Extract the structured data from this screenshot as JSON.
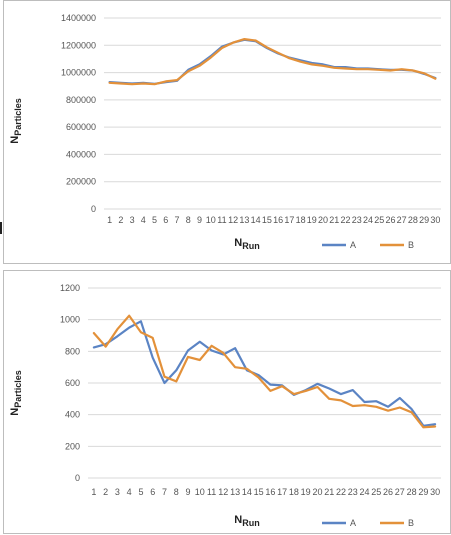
{
  "colors": {
    "series_a": "#5b84c4",
    "series_b": "#e3913a"
  },
  "chart_data": [
    {
      "type": "line",
      "title": "",
      "ylabel_main": "N",
      "ylabel_sub": "Particles",
      "xlabel_main": "N",
      "xlabel_sub": "Run",
      "ylim": [
        0,
        1400000
      ],
      "yticks": [
        "0",
        "200000",
        "400000",
        "600000",
        "800000",
        "1000000",
        "1200000",
        "1400000"
      ],
      "x": [
        "1",
        "2",
        "3",
        "4",
        "5",
        "6",
        "7",
        "8",
        "9",
        "10",
        "11",
        "12",
        "13",
        "14",
        "15",
        "16",
        "17",
        "18",
        "19",
        "20",
        "21",
        "22",
        "23",
        "24",
        "25",
        "26",
        "27",
        "28",
        "29",
        "30"
      ],
      "grid": true,
      "legend": "bottom-right",
      "series": [
        {
          "name": "A",
          "values": [
            930000,
            925000,
            920000,
            925000,
            918000,
            930000,
            940000,
            1020000,
            1060000,
            1120000,
            1190000,
            1220000,
            1240000,
            1230000,
            1180000,
            1140000,
            1110000,
            1090000,
            1070000,
            1060000,
            1040000,
            1040000,
            1030000,
            1030000,
            1025000,
            1020000,
            1020000,
            1015000,
            990000,
            960000
          ]
        },
        {
          "name": "B",
          "values": [
            925000,
            920000,
            915000,
            920000,
            915000,
            935000,
            945000,
            1010000,
            1050000,
            1110000,
            1180000,
            1220000,
            1245000,
            1235000,
            1185000,
            1145000,
            1105000,
            1080000,
            1060000,
            1050000,
            1035000,
            1030000,
            1025000,
            1025000,
            1020000,
            1015000,
            1025000,
            1015000,
            995000,
            955000
          ]
        }
      ]
    },
    {
      "type": "line",
      "title": "",
      "ylabel_main": "N",
      "ylabel_sub": "Particles",
      "xlabel_main": "N",
      "xlabel_sub": "Run",
      "ylim": [
        0,
        1200
      ],
      "yticks": [
        "0",
        "200",
        "400",
        "600",
        "800",
        "1000",
        "1200"
      ],
      "x": [
        "1",
        "2",
        "3",
        "4",
        "5",
        "6",
        "7",
        "8",
        "9",
        "10",
        "11",
        "12",
        "13",
        "14",
        "15",
        "16",
        "17",
        "18",
        "19",
        "20",
        "21",
        "22",
        "23",
        "24",
        "25",
        "26",
        "27",
        "28",
        "29",
        "30"
      ],
      "grid": true,
      "legend": "bottom-right",
      "series": [
        {
          "name": "A",
          "values": [
            825,
            845,
            895,
            950,
            990,
            760,
            600,
            680,
            805,
            860,
            805,
            780,
            820,
            680,
            650,
            590,
            585,
            525,
            555,
            595,
            565,
            530,
            555,
            480,
            485,
            450,
            505,
            435,
            330,
            340
          ]
        },
        {
          "name": "B",
          "values": [
            915,
            830,
            940,
            1025,
            920,
            885,
            640,
            610,
            765,
            745,
            835,
            790,
            700,
            690,
            635,
            550,
            580,
            530,
            550,
            575,
            500,
            490,
            455,
            460,
            450,
            425,
            445,
            415,
            320,
            325
          ]
        }
      ]
    }
  ]
}
